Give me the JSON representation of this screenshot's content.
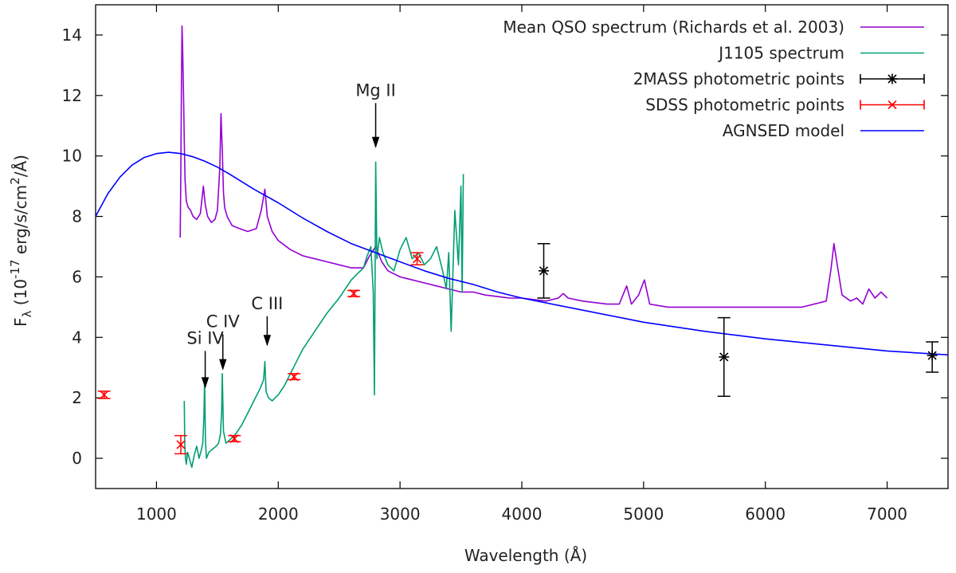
{
  "chart_data": {
    "type": "line",
    "xlabel": "Wavelength (Å)",
    "ylabel": {
      "prefix": "F",
      "sub": "λ",
      "open": " (10",
      "exp": "-17",
      "mid": " erg/s/cm",
      "exp2": "2",
      "close": "/Å)"
    },
    "xlim": [
      500,
      7500
    ],
    "ylim": [
      -1,
      15
    ],
    "xticks": [
      1000,
      2000,
      3000,
      4000,
      5000,
      6000,
      7000
    ],
    "yticks": [
      0,
      2,
      4,
      6,
      8,
      10,
      12,
      14
    ],
    "legend": {
      "position": "top-right",
      "entries": [
        {
          "label": "Mean QSO spectrum (Richards et al. 2003)",
          "color": "#9400d3",
          "style": "line"
        },
        {
          "label": "J1105 spectrum",
          "color": "#009e73",
          "style": "line"
        },
        {
          "label": "2MASS photometric points",
          "color": "#000000",
          "style": "errorbar"
        },
        {
          "label": "SDSS photometric points",
          "color": "#ff0000",
          "style": "errorbar"
        },
        {
          "label": "AGNSED model",
          "color": "#0000ff",
          "style": "line"
        }
      ]
    },
    "series": [
      {
        "name": "Mean QSO spectrum (Richards et al. 2003)",
        "color": "#9400d3",
        "x": [
          1195,
          1200,
          1205,
          1210,
          1215,
          1218,
          1222,
          1228,
          1235,
          1245,
          1260,
          1280,
          1300,
          1330,
          1360,
          1385,
          1400,
          1420,
          1450,
          1480,
          1500,
          1520,
          1530,
          1540,
          1550,
          1560,
          1580,
          1620,
          1680,
          1750,
          1820,
          1860,
          1890,
          1910,
          1950,
          2000,
          2100,
          2200,
          2300,
          2400,
          2500,
          2600,
          2700,
          2750,
          2800,
          2850,
          2900,
          3000,
          3100,
          3200,
          3300,
          3400,
          3500,
          3600,
          3700,
          3800,
          3900,
          4000,
          4100,
          4200,
          4300,
          4340,
          4380,
          4500,
          4700,
          4800,
          4861,
          4900,
          4959,
          5007,
          5050,
          5200,
          5500,
          6000,
          6300,
          6500,
          6540,
          6563,
          6590,
          6630,
          6700,
          6750,
          6800,
          6850,
          6900,
          6950,
          7000
        ],
        "y": [
          7.3,
          9.5,
          12.5,
          14.3,
          13.5,
          12.8,
          12.0,
          10.5,
          9.2,
          8.5,
          8.3,
          8.2,
          8.0,
          7.9,
          8.1,
          9.0,
          8.4,
          8.0,
          7.8,
          7.9,
          8.2,
          9.6,
          11.4,
          10.2,
          8.8,
          8.3,
          8.0,
          7.7,
          7.6,
          7.5,
          7.6,
          8.2,
          8.9,
          8.0,
          7.5,
          7.2,
          6.9,
          6.7,
          6.6,
          6.5,
          6.4,
          6.3,
          6.3,
          6.7,
          7.0,
          6.5,
          6.2,
          6.0,
          5.9,
          5.8,
          5.7,
          5.6,
          5.5,
          5.5,
          5.4,
          5.35,
          5.3,
          5.3,
          5.25,
          5.2,
          5.3,
          5.45,
          5.3,
          5.2,
          5.1,
          5.1,
          5.7,
          5.1,
          5.4,
          5.9,
          5.1,
          5.0,
          5.0,
          5.0,
          5.0,
          5.2,
          6.3,
          7.1,
          6.4,
          5.4,
          5.2,
          5.3,
          5.1,
          5.6,
          5.3,
          5.5,
          5.3
        ]
      },
      {
        "name": "J1105 spectrum",
        "color": "#009e73",
        "x": [
          1228,
          1232,
          1238,
          1245,
          1255,
          1270,
          1290,
          1310,
          1330,
          1350,
          1370,
          1380,
          1390,
          1395,
          1402,
          1410,
          1430,
          1460,
          1490,
          1510,
          1525,
          1535,
          1540,
          1550,
          1570,
          1600,
          1650,
          1700,
          1750,
          1800,
          1850,
          1880,
          1890,
          1900,
          1920,
          1950,
          2000,
          2050,
          2100,
          2150,
          2200,
          2300,
          2400,
          2500,
          2550,
          2600,
          2650,
          2700,
          2730,
          2760,
          2780,
          2790,
          2800,
          2810,
          2830,
          2860,
          2900,
          2950,
          3000,
          3050,
          3100,
          3150,
          3200,
          3250,
          3300,
          3350,
          3380,
          3400,
          3420,
          3450,
          3480,
          3500,
          3510,
          3520
        ],
        "y": [
          1.9,
          0.5,
          0.0,
          -0.2,
          0.2,
          0.0,
          -0.3,
          0.1,
          0.4,
          0.0,
          0.3,
          0.5,
          1.4,
          2.6,
          0.6,
          0.0,
          0.2,
          0.3,
          0.4,
          0.5,
          0.8,
          1.5,
          2.8,
          0.9,
          0.5,
          0.6,
          0.8,
          1.1,
          1.5,
          1.9,
          2.3,
          2.6,
          3.2,
          2.2,
          2.0,
          1.9,
          2.1,
          2.4,
          2.8,
          3.2,
          3.6,
          4.2,
          4.8,
          5.3,
          5.6,
          5.9,
          6.1,
          6.3,
          6.7,
          7.0,
          5.5,
          2.1,
          9.8,
          6.6,
          7.3,
          6.8,
          6.4,
          6.2,
          6.9,
          7.3,
          6.6,
          6.8,
          6.4,
          6.6,
          7.0,
          6.2,
          5.6,
          6.8,
          4.2,
          8.2,
          6.4,
          9.0,
          5.5,
          9.4
        ]
      },
      {
        "name": "AGNSED model",
        "color": "#0000ff",
        "x": [
          500,
          600,
          700,
          800,
          900,
          1000,
          1100,
          1200,
          1300,
          1400,
          1500,
          1600,
          1800,
          2000,
          2200,
          2400,
          2600,
          2800,
          3000,
          3200,
          3400,
          3600,
          3800,
          4000,
          4500,
          5000,
          5500,
          6000,
          6500,
          7000,
          7500
        ],
        "y": [
          8.0,
          8.75,
          9.3,
          9.7,
          9.95,
          10.08,
          10.12,
          10.08,
          9.97,
          9.82,
          9.63,
          9.4,
          8.9,
          8.45,
          7.95,
          7.5,
          7.1,
          6.8,
          6.5,
          6.2,
          5.95,
          5.75,
          5.5,
          5.3,
          4.9,
          4.5,
          4.2,
          3.95,
          3.75,
          3.55,
          3.42
        ]
      }
    ],
    "points": [
      {
        "name": "2MASS photometric points",
        "color": "#000000",
        "marker": "star",
        "x": [
          4180,
          5660,
          7370
        ],
        "y": [
          6.2,
          3.35,
          3.4
        ],
        "yerr_low": [
          0.9,
          1.3,
          0.55
        ],
        "yerr_high": [
          0.9,
          1.3,
          0.45
        ]
      },
      {
        "name": "SDSS photometric points",
        "color": "#ff0000",
        "marker": "x",
        "x": [
          570,
          1200,
          1640,
          2130,
          2620,
          3140
        ],
        "y": [
          2.1,
          0.45,
          0.65,
          2.7,
          5.45,
          6.6
        ],
        "yerr_low": [
          0.12,
          0.3,
          0.1,
          0.1,
          0.1,
          0.2
        ],
        "yerr_high": [
          0.12,
          0.3,
          0.1,
          0.1,
          0.1,
          0.2
        ]
      }
    ],
    "annotations": [
      {
        "label": "Mg II",
        "x": 2800,
        "arrow_from": 11.75,
        "arrow_to": 10.3
      },
      {
        "label": "Si IV",
        "x": 1400,
        "arrow_from": 3.55,
        "arrow_to": 2.35
      },
      {
        "label": "C IV",
        "x": 1545,
        "arrow_from": 4.1,
        "arrow_to": 2.95
      },
      {
        "label": "C III",
        "x": 1909,
        "arrow_from": 4.7,
        "arrow_to": 3.75
      }
    ]
  }
}
